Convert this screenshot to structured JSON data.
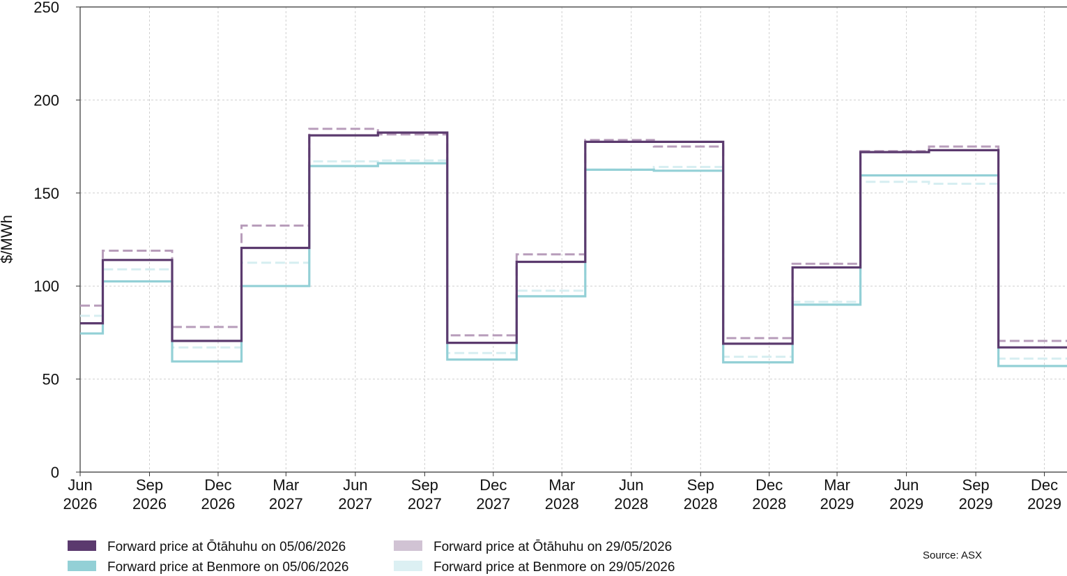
{
  "chart_data": {
    "type": "line",
    "step": "post",
    "ylabel": "$/MWh",
    "ylim": [
      0,
      250
    ],
    "yticks": [
      0,
      50,
      100,
      150,
      200,
      250
    ],
    "xlim": [
      "2026-06-01",
      "2029-12-31"
    ],
    "x_tick_labels": [
      {
        "date": "2026-06-01",
        "label": [
          "Jun",
          "2026"
        ]
      },
      {
        "date": "2026-09-01",
        "label": [
          "Sep",
          "2026"
        ]
      },
      {
        "date": "2026-12-01",
        "label": [
          "Dec",
          "2026"
        ]
      },
      {
        "date": "2027-03-01",
        "label": [
          "Mar",
          "2027"
        ]
      },
      {
        "date": "2027-06-01",
        "label": [
          "Jun",
          "2027"
        ]
      },
      {
        "date": "2027-09-01",
        "label": [
          "Sep",
          "2027"
        ]
      },
      {
        "date": "2027-12-01",
        "label": [
          "Dec",
          "2027"
        ]
      },
      {
        "date": "2028-03-01",
        "label": [
          "Mar",
          "2028"
        ]
      },
      {
        "date": "2028-06-01",
        "label": [
          "Jun",
          "2028"
        ]
      },
      {
        "date": "2028-09-01",
        "label": [
          "Sep",
          "2028"
        ]
      },
      {
        "date": "2028-12-01",
        "label": [
          "Dec",
          "2028"
        ]
      },
      {
        "date": "2029-03-01",
        "label": [
          "Mar",
          "2029"
        ]
      },
      {
        "date": "2029-06-01",
        "label": [
          "Jun",
          "2029"
        ]
      },
      {
        "date": "2029-09-01",
        "label": [
          "Sep",
          "2029"
        ]
      },
      {
        "date": "2029-12-01",
        "label": [
          "Dec",
          "2029"
        ]
      }
    ],
    "grid": true,
    "source": "Source: ASX",
    "series": [
      {
        "name": "Forward price at Benmore on 29/05/2026",
        "color": "#d6eef1",
        "dash": true,
        "points": [
          [
            "2026-06-01",
            84
          ],
          [
            "2026-07-01",
            109
          ],
          [
            "2026-10-01",
            67
          ],
          [
            "2027-01-01",
            112.5
          ],
          [
            "2027-04-01",
            167
          ],
          [
            "2027-07-01",
            167.5
          ],
          [
            "2027-10-01",
            64
          ],
          [
            "2028-01-01",
            97.5
          ],
          [
            "2028-04-01",
            162.5
          ],
          [
            "2028-07-01",
            164
          ],
          [
            "2028-10-01",
            62
          ],
          [
            "2029-01-01",
            91.5
          ],
          [
            "2029-04-01",
            156
          ],
          [
            "2029-07-01",
            155
          ],
          [
            "2029-10-01",
            61
          ],
          [
            "2029-12-31",
            61
          ]
        ]
      },
      {
        "name": "Forward price at Ōtāhuhu on 29/05/2026",
        "color": "#b89dbb",
        "dash": true,
        "points": [
          [
            "2026-06-01",
            89.5
          ],
          [
            "2026-07-01",
            119
          ],
          [
            "2026-10-01",
            78
          ],
          [
            "2027-01-01",
            132.5
          ],
          [
            "2027-04-01",
            184.5
          ],
          [
            "2027-07-01",
            181.5
          ],
          [
            "2027-10-01",
            73.5
          ],
          [
            "2028-01-01",
            117
          ],
          [
            "2028-04-01",
            178.5
          ],
          [
            "2028-07-01",
            175
          ],
          [
            "2028-10-01",
            72
          ],
          [
            "2029-01-01",
            112
          ],
          [
            "2029-04-01",
            172.5
          ],
          [
            "2029-07-01",
            175
          ],
          [
            "2029-10-01",
            70.5
          ],
          [
            "2029-12-31",
            70.5
          ]
        ]
      },
      {
        "name": "Forward price at Benmore on 05/06/2026",
        "color": "#93d0d6",
        "dash": false,
        "points": [
          [
            "2026-06-01",
            74.5
          ],
          [
            "2026-07-01",
            102.5
          ],
          [
            "2026-10-01",
            59.5
          ],
          [
            "2027-01-01",
            100
          ],
          [
            "2027-04-01",
            164.5
          ],
          [
            "2027-07-01",
            166
          ],
          [
            "2027-10-01",
            60.5
          ],
          [
            "2028-01-01",
            94.5
          ],
          [
            "2028-04-01",
            162.5
          ],
          [
            "2028-07-01",
            162
          ],
          [
            "2028-10-01",
            59
          ],
          [
            "2029-01-01",
            90
          ],
          [
            "2029-04-01",
            159.5
          ],
          [
            "2029-07-01",
            159.5
          ],
          [
            "2029-10-01",
            57
          ],
          [
            "2029-12-31",
            57
          ]
        ]
      },
      {
        "name": "Forward price at Ōtāhuhu on 05/06/2026",
        "color": "#5b3a6e",
        "dash": false,
        "points": [
          [
            "2026-06-01",
            80
          ],
          [
            "2026-07-01",
            114
          ],
          [
            "2026-10-01",
            70.5
          ],
          [
            "2027-01-01",
            120.5
          ],
          [
            "2027-04-01",
            181
          ],
          [
            "2027-07-01",
            182.5
          ],
          [
            "2027-10-01",
            69.5
          ],
          [
            "2028-01-01",
            113
          ],
          [
            "2028-04-01",
            177.5
          ],
          [
            "2028-07-01",
            177.5
          ],
          [
            "2028-10-01",
            69
          ],
          [
            "2029-01-01",
            110
          ],
          [
            "2029-04-01",
            172
          ],
          [
            "2029-07-01",
            173
          ],
          [
            "2029-10-01",
            67
          ],
          [
            "2029-12-31",
            67
          ]
        ]
      }
    ],
    "legend": [
      {
        "name": "Forward price at Ōtāhuhu on 05/06/2026",
        "color": "#5b3a6e"
      },
      {
        "name": "Forward price at Benmore on 05/06/2026",
        "color": "#93d0d6"
      },
      {
        "name": "Forward price at Ōtāhuhu on 29/05/2026",
        "color": "#d1c3d4"
      },
      {
        "name": "Forward price at Benmore on 29/05/2026",
        "color": "#dcf0f3"
      }
    ],
    "legend_position": "bottom-left"
  }
}
